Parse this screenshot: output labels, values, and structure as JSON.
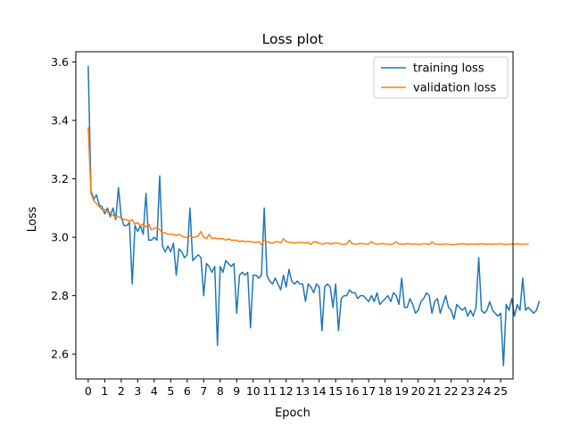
{
  "chart_data": {
    "type": "line",
    "title": "Loss plot",
    "xlabel": "Epoch",
    "ylabel": "Loss",
    "xlim": [
      -0.75,
      25.75
    ],
    "ylim": [
      2.515,
      3.635
    ],
    "x_ticks": [
      0,
      1,
      2,
      3,
      4,
      5,
      6,
      7,
      8,
      9,
      10,
      11,
      12,
      13,
      14,
      15,
      16,
      17,
      18,
      19,
      20,
      21,
      22,
      23,
      24,
      25
    ],
    "x_tick_labels": [
      "0",
      "1",
      "2",
      "3",
      "4",
      "5",
      "6",
      "7",
      "8",
      "9",
      "10",
      "11",
      "12",
      "13",
      "14",
      "15",
      "16",
      "17",
      "18",
      "19",
      "20",
      "21",
      "22",
      "23",
      "24",
      "25"
    ],
    "y_ticks": [
      2.6,
      2.8,
      3.0,
      3.2,
      3.4,
      3.6
    ],
    "y_tick_labels": [
      "2.6",
      "2.8",
      "3.0",
      "3.2",
      "3.4",
      "3.6"
    ],
    "grid": false,
    "legend_position": "top-right",
    "series": [
      {
        "name": "training loss",
        "color": "#1f77b4",
        "x_step": 0.1667,
        "values": [
          3.585,
          3.16,
          3.13,
          3.145,
          3.11,
          3.105,
          3.08,
          3.1,
          3.07,
          3.1,
          3.06,
          3.17,
          3.07,
          3.04,
          3.04,
          3.05,
          2.84,
          3.04,
          3.02,
          3.04,
          3.01,
          3.15,
          2.99,
          2.99,
          3.0,
          2.99,
          3.21,
          2.97,
          2.95,
          2.97,
          2.95,
          2.98,
          2.87,
          2.96,
          2.95,
          2.93,
          2.94,
          3.1,
          2.92,
          2.93,
          2.94,
          2.93,
          2.8,
          2.91,
          2.9,
          2.88,
          2.9,
          2.63,
          2.9,
          2.88,
          2.92,
          2.91,
          2.9,
          2.91,
          2.74,
          2.87,
          2.88,
          2.87,
          2.88,
          2.69,
          2.87,
          2.87,
          2.86,
          2.87,
          3.1,
          2.87,
          2.85,
          2.84,
          2.86,
          2.84,
          2.82,
          2.87,
          2.83,
          2.89,
          2.85,
          2.84,
          2.85,
          2.84,
          2.84,
          2.78,
          2.84,
          2.83,
          2.81,
          2.84,
          2.83,
          2.68,
          2.83,
          2.84,
          2.83,
          2.76,
          2.84,
          2.68,
          2.79,
          2.8,
          2.8,
          2.82,
          2.81,
          2.81,
          2.79,
          2.8,
          2.8,
          2.79,
          2.78,
          2.8,
          2.78,
          2.81,
          2.77,
          2.78,
          2.79,
          2.8,
          2.78,
          2.81,
          2.8,
          2.77,
          2.86,
          2.76,
          2.76,
          2.79,
          2.77,
          2.74,
          2.75,
          2.78,
          2.79,
          2.81,
          2.8,
          2.74,
          2.78,
          2.79,
          2.74,
          2.77,
          2.8,
          2.76,
          2.75,
          2.72,
          2.77,
          2.76,
          2.75,
          2.76,
          2.73,
          2.75,
          2.73,
          2.76,
          2.93,
          2.75,
          2.74,
          2.75,
          2.78,
          2.75,
          2.74,
          2.73,
          2.74,
          2.56,
          2.77,
          2.75,
          2.79,
          2.73,
          2.77,
          2.75,
          2.86,
          2.75,
          2.76,
          2.75,
          2.74,
          2.75,
          2.78
        ]
      },
      {
        "name": "validation loss",
        "color": "#ff7f0e",
        "x_step": 0.1667,
        "values": [
          3.375,
          3.15,
          3.125,
          3.115,
          3.105,
          3.095,
          3.095,
          3.085,
          3.085,
          3.075,
          3.07,
          3.07,
          3.065,
          3.06,
          3.06,
          3.055,
          3.06,
          3.045,
          3.05,
          3.04,
          3.045,
          3.035,
          3.045,
          3.025,
          3.03,
          3.035,
          3.025,
          3.015,
          3.015,
          3.01,
          3.01,
          3.01,
          3.005,
          3.01,
          3.005,
          3.0,
          3.0,
          3.005,
          3.0,
          3.0,
          3.005,
          3.02,
          3.0,
          2.995,
          3.01,
          2.995,
          2.998,
          2.995,
          2.995,
          2.995,
          2.99,
          2.995,
          2.99,
          2.99,
          2.99,
          2.985,
          2.988,
          2.985,
          2.986,
          2.985,
          2.984,
          2.982,
          2.985,
          2.975,
          2.99,
          2.985,
          2.982,
          2.98,
          2.984,
          2.985,
          2.98,
          2.995,
          2.985,
          2.983,
          2.982,
          2.98,
          2.981,
          2.983,
          2.982,
          2.98,
          2.983,
          2.975,
          2.985,
          2.983,
          2.98,
          2.976,
          2.978,
          2.981,
          2.977,
          2.979,
          2.98,
          2.98,
          2.976,
          2.975,
          2.978,
          2.99,
          2.978,
          2.976,
          2.977,
          2.979,
          2.978,
          2.976,
          2.977,
          2.985,
          2.978,
          2.976,
          2.977,
          2.979,
          2.977,
          2.976,
          2.975,
          2.978,
          2.985,
          2.976,
          2.977,
          2.976,
          2.978,
          2.977,
          2.976,
          2.977,
          2.975,
          2.976,
          2.978,
          2.977,
          2.975,
          2.984,
          2.977,
          2.976,
          2.975,
          2.976,
          2.977,
          2.976,
          2.975,
          2.974,
          2.977,
          2.976,
          2.978,
          2.976,
          2.975,
          2.977,
          2.976,
          2.977,
          2.975,
          2.978,
          2.976,
          2.976,
          2.977,
          2.975,
          2.977,
          2.976,
          2.978,
          2.976,
          2.975,
          2.976,
          2.977,
          2.976,
          2.978,
          2.975,
          2.976,
          2.977,
          2.976
        ]
      }
    ]
  }
}
